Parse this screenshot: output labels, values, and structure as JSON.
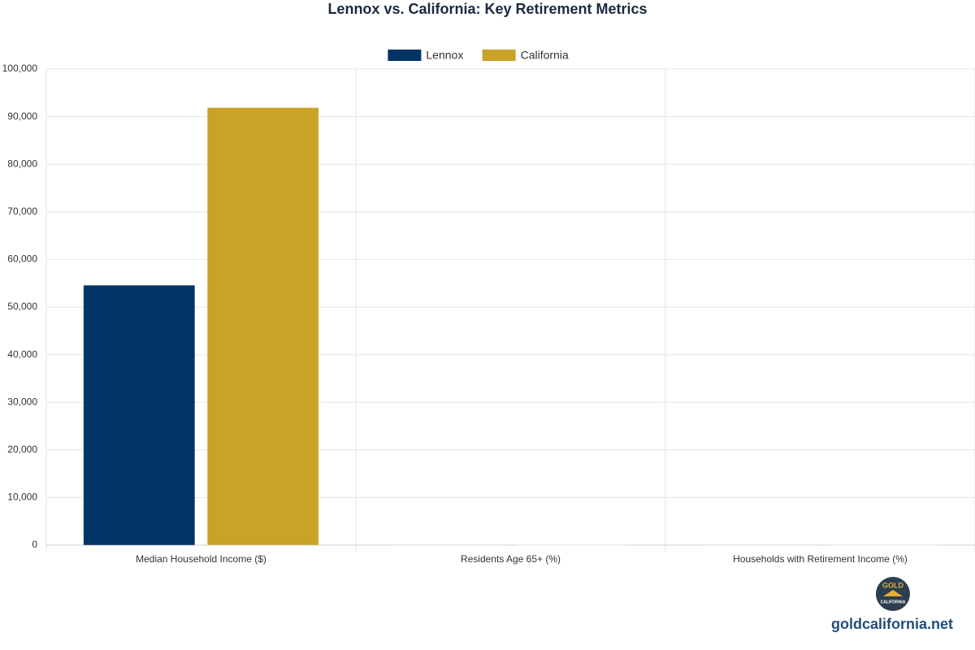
{
  "chart_data": {
    "type": "bar",
    "title": "Lennox vs. California: Key Retirement Metrics",
    "categories": [
      "Median Household Income ($)",
      "Residents Age 65+ (%)",
      "Households with Retirement Income (%)"
    ],
    "series": [
      {
        "name": "Lennox",
        "color": "#003366",
        "values": [
          54600,
          9.5,
          17
        ]
      },
      {
        "name": "California",
        "color": "#c9a227",
        "values": [
          91900,
          15.8,
          29
        ]
      }
    ],
    "ylim": [
      0,
      100000
    ],
    "yticks": [
      0,
      {
        "value": 10000,
        "label": "10,000"
      },
      {
        "value": 20000,
        "label": "20,000"
      },
      {
        "value": 30000,
        "label": "30,000"
      },
      {
        "value": 40000,
        "label": "40,000"
      },
      {
        "value": 50000,
        "label": "50,000"
      },
      {
        "value": 60000,
        "label": "60,000"
      },
      {
        "value": 70000,
        "label": "70,000"
      },
      {
        "value": 80000,
        "label": "80,000"
      },
      {
        "value": 90000,
        "label": "90,000"
      },
      {
        "value": 100000,
        "label": "100,000"
      }
    ],
    "grid": true,
    "legend": "top"
  },
  "footer": {
    "logo_top": "GOLD",
    "logo_bottom": "CALIFORNIA",
    "site": "goldcalifornia.net"
  }
}
